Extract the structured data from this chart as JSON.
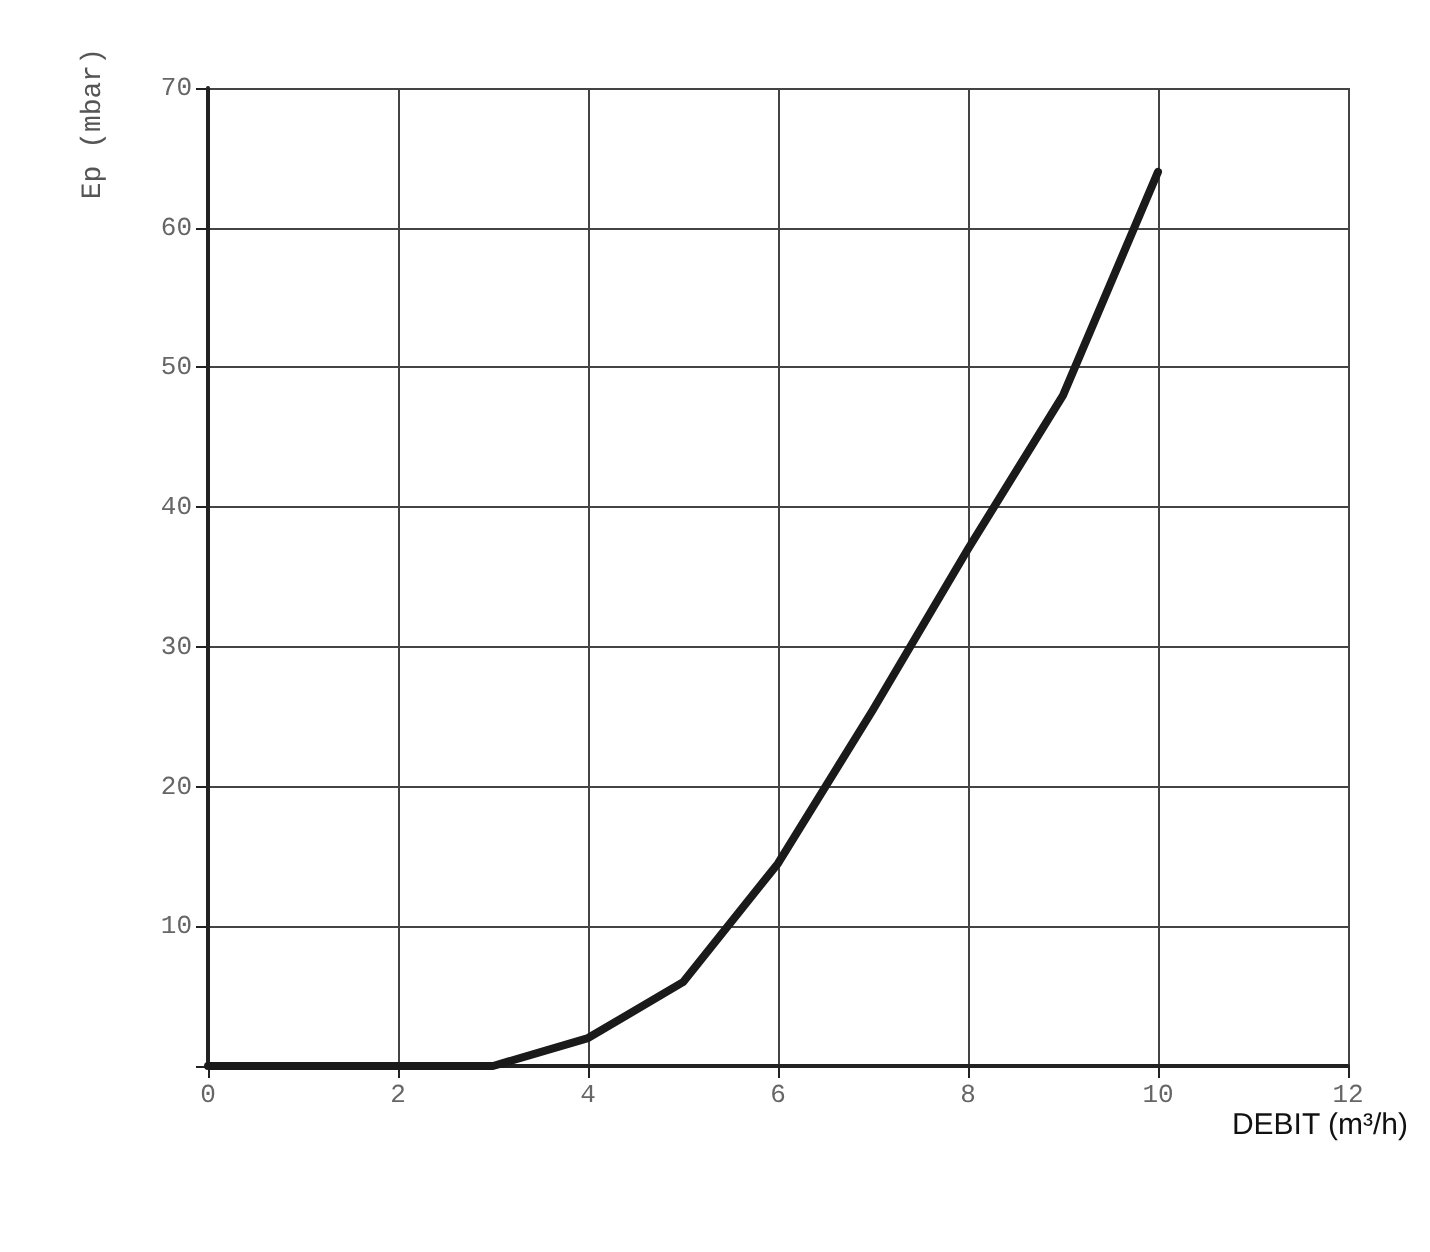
{
  "chart_data": {
    "type": "line",
    "xlabel": "DEBIT (m³/h)",
    "ylabel": "Ep (mbar)",
    "x": [
      0,
      3,
      4,
      5,
      6,
      7,
      8,
      9,
      10
    ],
    "series": [
      {
        "color": "#1a1a1a",
        "values": [
          0,
          0,
          2,
          6,
          14.5,
          25.5,
          37,
          48,
          64
        ]
      }
    ],
    "xlim": [
      0,
      12
    ],
    "xticks": [
      0,
      2,
      4,
      6,
      8,
      10,
      12
    ],
    "ylim": [
      0,
      70
    ],
    "yticks": [
      {
        "value": 0,
        "label": null
      },
      10,
      20,
      30,
      40,
      50,
      60,
      70
    ],
    "grid": true,
    "marker": "none",
    "line_style": "solid"
  }
}
